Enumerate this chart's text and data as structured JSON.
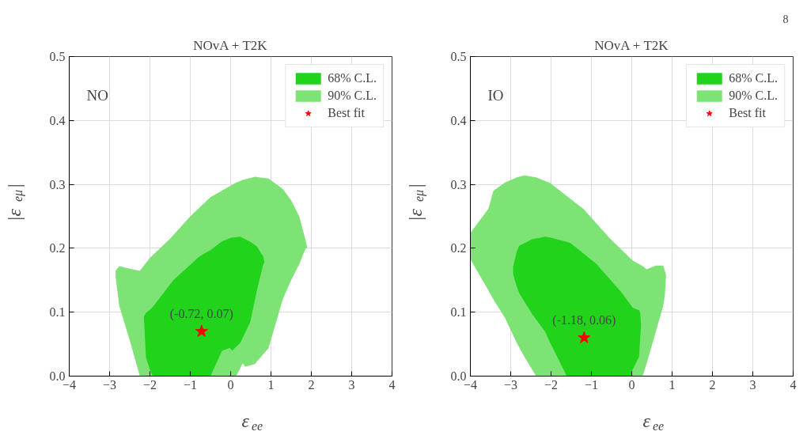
{
  "chart_data": [
    {
      "type": "area",
      "title": "NOvA + T2K",
      "xlabel": "ε$_{ee}$",
      "ylabel": "|ε$_{eμ}$|",
      "xlim": [
        -4,
        4
      ],
      "xticks": [
        {
          "value": -4,
          "label": "−4"
        },
        {
          "value": -3,
          "label": "−3"
        },
        {
          "value": -2,
          "label": "−2"
        },
        {
          "value": -1,
          "label": "−1"
        },
        0,
        1,
        2,
        3,
        4
      ],
      "ylim": [
        0,
        0.5
      ],
      "yticks": [
        {
          "value": 0,
          "label": "0.0"
        },
        0.1,
        0.2,
        0.3,
        0.4,
        0.5
      ],
      "grid": true,
      "legend": "top right",
      "series": [
        {
          "name": "90% C.L.",
          "color": "#7de374",
          "x": [
            -2.85,
            -2.76,
            -2.5,
            -2.25,
            -2.0,
            -1.5,
            -1.0,
            -0.5,
            0,
            0.14,
            0.3,
            0.36,
            0.6,
            0.94,
            1.29,
            1.5,
            1.7,
            1.86,
            1.9,
            1.86,
            1.7,
            1.5,
            1.29,
            0.94,
            0.6,
            0.36,
            0.3,
            0.14,
            0,
            -0.5,
            -1.0,
            -1.5,
            -2.0,
            -2.25,
            -2.5,
            -2.76,
            -2.85
          ],
          "values": [
            0.165,
            0.172,
            0.168,
            0.165,
            0.185,
            0.215,
            0.25,
            0.28,
            0.298,
            0.303,
            0.307,
            0.308,
            0.312,
            0.309,
            0.293,
            0.275,
            0.25,
            0.212,
            0.2,
            0.2,
            0.175,
            0.15,
            0.12,
            0.044,
            0.019,
            0.015,
            0.02,
            0,
            0,
            0,
            0,
            0,
            0,
            0,
            0.056,
            0.11,
            0.155
          ]
        },
        {
          "name": "68% C.L.",
          "color": "#22d31c",
          "x": [
            -2.15,
            -2.1,
            -2.0,
            -1.93,
            -1.42,
            -0.78,
            -0.5,
            -0.21,
            -0.02,
            0.04,
            0.24,
            0.49,
            0.65,
            0.81,
            0.84,
            0.81,
            0.65,
            0.49,
            0.24,
            0.04,
            -0.02,
            -0.21,
            -0.5,
            -0.78,
            -1.42,
            -1.93,
            -2.0,
            -2.1
          ],
          "values": [
            0.093,
            0.099,
            0.104,
            0.108,
            0.15,
            0.187,
            0.197,
            0.211,
            0.216,
            0.217,
            0.218,
            0.21,
            0.203,
            0.187,
            0.178,
            0.175,
            0.134,
            0.085,
            0.052,
            0.04,
            0.044,
            0.04,
            0,
            0,
            0,
            0,
            0.01,
            0.03
          ]
        },
        {
          "name": "Best fit",
          "type": "scatter",
          "marker": "star",
          "color": "#ff0000",
          "x": [
            -0.72
          ],
          "values": [
            0.07
          ]
        }
      ],
      "annotations": [
        "NO",
        {
          "text": "(-0.72, 0.07)",
          "x": -0.72,
          "y": 0.07
        }
      ]
    },
    {
      "type": "area",
      "title": "NOvA + T2K",
      "xlabel": "ε$_{ee}$",
      "ylabel": "|ε$_{eμ}$|",
      "xlim": [
        -4,
        4
      ],
      "xticks": [
        {
          "value": -4,
          "label": "−4"
        },
        {
          "value": -3,
          "label": "−3"
        },
        {
          "value": -2,
          "label": "−2"
        },
        {
          "value": -1,
          "label": "−1"
        },
        0,
        1,
        2,
        3,
        4
      ],
      "ylim": [
        0,
        0.5
      ],
      "yticks": [
        {
          "value": 0,
          "label": "0.0"
        },
        0.1,
        0.2,
        0.3,
        0.4,
        0.5
      ],
      "grid": true,
      "legend": "top right",
      "series": [
        {
          "name": "90% C.L.",
          "color": "#7de374",
          "x": [
            -4,
            -3.55,
            -3.43,
            -3.14,
            -2.85,
            -2.66,
            -2.37,
            -2.02,
            -1.19,
            -0.55,
            0.02,
            0.27,
            0.37,
            0.59,
            0.78,
            0.82,
            0.85,
            0.82,
            0.78,
            0.59,
            0.37,
            0.27,
            0.02,
            -0.55,
            -1.19,
            -2.02,
            -2.37,
            -2.66,
            -2.85,
            -3.14,
            -3.43,
            -3.55,
            -4
          ],
          "values": [
            0.224,
            0.262,
            0.29,
            0.303,
            0.311,
            0.314,
            0.311,
            0.302,
            0.261,
            0.216,
            0.181,
            0.172,
            0.167,
            0.173,
            0.173,
            0.165,
            0.158,
            0.126,
            0.11,
            0.068,
            0.02,
            0,
            0,
            0,
            0,
            0,
            0,
            0.03,
            0.052,
            0.091,
            0.12,
            0.134,
            0.183
          ]
        },
        {
          "name": "68% C.L.",
          "color": "#22d31c",
          "x": [
            -2.94,
            -2.85,
            -2.79,
            -2.47,
            -2.15,
            -2.02,
            -1.61,
            -1.51,
            -0.87,
            -0.24,
            -0.01,
            0.02,
            0.18,
            0.21,
            0.23,
            0.21,
            0.18,
            0.02,
            -0.01,
            -0.24,
            -0.87,
            -1.51,
            -1.61,
            -2.02,
            -2.15,
            -2.47,
            -2.79,
            -2.85,
            -2.94
          ],
          "values": [
            0.171,
            0.195,
            0.204,
            0.214,
            0.218,
            0.217,
            0.21,
            0.208,
            0.175,
            0.13,
            0.11,
            0.107,
            0.103,
            0.099,
            0.08,
            0.06,
            0.03,
            0.01,
            0,
            0,
            0,
            0,
            0,
            0.052,
            0.07,
            0.097,
            0.13,
            0.14,
            0.16
          ]
        },
        {
          "name": "Best fit",
          "type": "scatter",
          "marker": "star",
          "color": "#ff0000",
          "x": [
            -1.18
          ],
          "values": [
            0.06
          ]
        }
      ],
      "annotations": [
        "IO",
        {
          "text": "(-1.18, 0.06)",
          "x": -1.18,
          "y": 0.06
        },
        "8"
      ]
    }
  ]
}
